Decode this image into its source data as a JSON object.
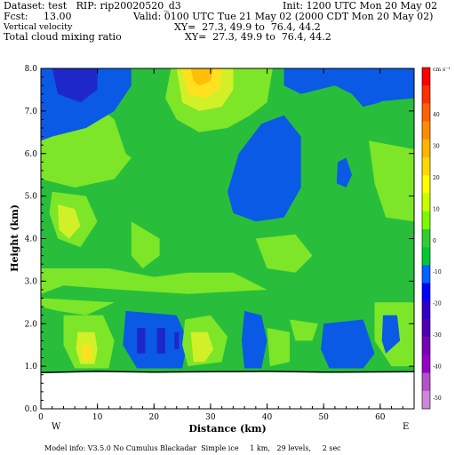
{
  "header": {
    "dataset": "Dataset: test   RIP: rip20020520_d3",
    "init": "Init: 1200 UTC Mon 20 May 02",
    "fcst": "Fcst:     13.00",
    "valid": "Valid: 0100 UTC Tue 21 May 02 (2000 CDT Mon 20 May 02)",
    "field1": "Vertical velocity",
    "xy1": "XY=  27.3, 49.9 to  76.4, 44.2",
    "field2": "Total cloud mixing ratio",
    "xy2": "XY=  27.3, 49.9 to  76.4, 44.2"
  },
  "footer": "Model info: V3.5.0 No Cumulus Blackadar  Simple ice     1 km,   29 levels,     2 sec",
  "colors": {
    "background": "#ffffff",
    "ground": "#ffffff"
  },
  "chart_data": {
    "type": "filled-contour",
    "xlabel": "Distance (km)",
    "ylabel": "Height (km)",
    "xlim": [
      0,
      66
    ],
    "ylim": [
      0,
      8
    ],
    "xticks": [
      "0",
      "10",
      "20",
      "30",
      "40",
      "50",
      "60"
    ],
    "yticks": [
      "0.0",
      "1.0",
      "2.0",
      "3.0",
      "4.0",
      "5.0",
      "6.0",
      "7.0",
      "8.0"
    ],
    "left_end_label": "W",
    "right_end_label": "E",
    "colorbar_unit": "cm s⁻¹",
    "colorbar_ticks": [
      "40",
      "30",
      "20",
      "10",
      "0",
      "-10",
      "-20",
      "-30",
      "-40",
      "-50"
    ],
    "colorbar_colors": [
      "#ff0000",
      "#ff3000",
      "#ff6000",
      "#ff8c00",
      "#ffb400",
      "#ffd700",
      "#ffff00",
      "#c8ff00",
      "#7dfa00",
      "#32cd32",
      "#00c832",
      "#0064ff",
      "#0000ff",
      "#3000c8",
      "#5000b4",
      "#7800b4",
      "#9600c8",
      "#b450c8",
      "#cc88d8"
    ],
    "ground_profile_km": [
      [
        0,
        0.85
      ],
      [
        10,
        0.88
      ],
      [
        20,
        0.86
      ],
      [
        30,
        0.87
      ],
      [
        40,
        0.88
      ],
      [
        50,
        0.86
      ],
      [
        66,
        0.87
      ]
    ],
    "level_colors": {
      "-20": "#1e28c8",
      "-10": "#0a5ae6",
      "0": "#28be3c",
      "5": "#7de628",
      "10": "#d2f028",
      "20": "#ffe11e",
      "30": "#ffbe0a"
    },
    "regions": [
      {
        "level": "5",
        "points": [
          [
            0,
            7.5
          ],
          [
            8,
            7.3
          ],
          [
            13,
            6.8
          ],
          [
            15,
            6.0
          ],
          [
            12,
            5.7
          ],
          [
            5,
            5.6
          ],
          [
            0,
            5.5
          ]
        ]
      },
      {
        "level": "-10",
        "points": [
          [
            0,
            8
          ],
          [
            16,
            8
          ],
          [
            16,
            7.6
          ],
          [
            13,
            7.0
          ],
          [
            8,
            6.6
          ],
          [
            2,
            6.4
          ],
          [
            0,
            6.3
          ]
        ]
      },
      {
        "level": "-20",
        "points": [
          [
            2,
            8
          ],
          [
            10,
            8
          ],
          [
            10,
            7.5
          ],
          [
            7,
            7.2
          ],
          [
            3,
            7.4
          ]
        ]
      },
      {
        "level": "5",
        "points": [
          [
            23,
            8
          ],
          [
            41,
            8
          ],
          [
            40,
            7.2
          ],
          [
            37,
            6.9
          ],
          [
            33,
            6.6
          ],
          [
            28,
            6.5
          ],
          [
            24,
            6.8
          ],
          [
            22,
            7.3
          ]
        ]
      },
      {
        "level": "10",
        "points": [
          [
            24,
            8
          ],
          [
            34,
            8
          ],
          [
            34,
            7.5
          ],
          [
            32,
            7.1
          ],
          [
            28,
            7.0
          ],
          [
            25,
            7.2
          ]
        ]
      },
      {
        "level": "20",
        "points": [
          [
            25,
            8
          ],
          [
            32,
            8
          ],
          [
            31.5,
            7.5
          ],
          [
            29,
            7.3
          ],
          [
            26,
            7.4
          ]
        ]
      },
      {
        "level": "30",
        "points": [
          [
            26.5,
            8
          ],
          [
            30.5,
            8
          ],
          [
            30,
            7.7
          ],
          [
            28,
            7.6
          ],
          [
            27,
            7.7
          ]
        ]
      },
      {
        "level": "-10",
        "points": [
          [
            43,
            8
          ],
          [
            66,
            8
          ],
          [
            66,
            7.3
          ],
          [
            58,
            7.2
          ],
          [
            52,
            7.6
          ],
          [
            46,
            7.4
          ],
          [
            43,
            7.6
          ]
        ]
      },
      {
        "level": "-10",
        "points": [
          [
            55,
            8
          ],
          [
            62,
            8
          ],
          [
            62,
            7.6
          ],
          [
            60,
            7.2
          ],
          [
            57,
            7.1
          ],
          [
            55,
            7.4
          ]
        ]
      },
      {
        "level": "-10",
        "points": [
          [
            33,
            5.1
          ],
          [
            35,
            6.0
          ],
          [
            39,
            6.7
          ],
          [
            43,
            6.9
          ],
          [
            46,
            6.4
          ],
          [
            46,
            5.2
          ],
          [
            43,
            4.5
          ],
          [
            38,
            4.4
          ],
          [
            34,
            4.6
          ]
        ]
      },
      {
        "level": "-10",
        "points": [
          [
            52.3,
            5.3
          ],
          [
            54,
            5.2
          ],
          [
            55,
            5.5
          ],
          [
            54,
            5.9
          ],
          [
            52.5,
            5.8
          ]
        ]
      },
      {
        "level": "5",
        "points": [
          [
            58,
            6.3
          ],
          [
            66,
            6.1
          ],
          [
            66,
            4.4
          ],
          [
            61,
            4.5
          ],
          [
            59,
            5.3
          ]
        ]
      },
      {
        "level": "5",
        "points": [
          [
            0,
            6.1
          ],
          [
            14,
            6.1
          ],
          [
            16,
            5.9
          ],
          [
            13,
            5.4
          ],
          [
            6,
            5.2
          ],
          [
            0,
            5.4
          ]
        ]
      },
      {
        "level": "5",
        "points": [
          [
            2,
            5.1
          ],
          [
            8,
            5.0
          ],
          [
            10,
            4.4
          ],
          [
            7,
            3.8
          ],
          [
            3,
            4.0
          ],
          [
            1.5,
            4.6
          ]
        ]
      },
      {
        "level": "10",
        "points": [
          [
            3,
            4.8
          ],
          [
            6,
            4.7
          ],
          [
            7,
            4.3
          ],
          [
            5,
            4.0
          ],
          [
            3.2,
            4.2
          ]
        ]
      },
      {
        "level": "5",
        "points": [
          [
            16,
            4.4
          ],
          [
            21,
            4.0
          ],
          [
            21,
            3.6
          ],
          [
            18,
            3.3
          ],
          [
            16,
            3.6
          ]
        ]
      },
      {
        "level": "5",
        "points": [
          [
            38,
            4.0
          ],
          [
            45,
            4.1
          ],
          [
            48,
            3.6
          ],
          [
            45,
            3.2
          ],
          [
            40,
            3.3
          ]
        ]
      },
      {
        "level": "5",
        "points": [
          [
            0,
            3.3
          ],
          [
            12,
            3.3
          ],
          [
            20,
            3.1
          ],
          [
            26,
            3.2
          ],
          [
            34,
            3.2
          ],
          [
            40,
            2.8
          ],
          [
            26,
            2.7
          ],
          [
            14,
            2.8
          ],
          [
            4,
            2.9
          ],
          [
            0,
            2.7
          ]
        ]
      },
      {
        "level": "5",
        "points": [
          [
            0,
            2.6
          ],
          [
            13,
            2.5
          ],
          [
            8,
            2.2
          ],
          [
            3,
            2.3
          ],
          [
            0,
            2.4
          ]
        ]
      },
      {
        "level": "5",
        "points": [
          [
            4,
            2.2
          ],
          [
            11,
            2.2
          ],
          [
            13,
            1.6
          ],
          [
            12,
            0.95
          ],
          [
            6,
            0.95
          ],
          [
            4,
            1.5
          ]
        ]
      },
      {
        "level": "10",
        "points": [
          [
            6.5,
            1.8
          ],
          [
            9.5,
            1.8
          ],
          [
            10,
            1.4
          ],
          [
            9.5,
            1.05
          ],
          [
            7,
            1.05
          ],
          [
            6.2,
            1.4
          ]
        ]
      },
      {
        "level": "20",
        "points": [
          [
            7.2,
            1.5
          ],
          [
            8.8,
            1.5
          ],
          [
            9,
            1.2
          ],
          [
            8.5,
            1.1
          ],
          [
            7.3,
            1.15
          ]
        ]
      },
      {
        "level": "-10",
        "points": [
          [
            15,
            2.3
          ],
          [
            24,
            2.2
          ],
          [
            26,
            1.6
          ],
          [
            25,
            0.95
          ],
          [
            17,
            0.95
          ],
          [
            14.5,
            1.5
          ]
        ]
      },
      {
        "level": "-20",
        "points": [
          [
            17,
            1.9
          ],
          [
            18.5,
            1.9
          ],
          [
            18.5,
            1.3
          ],
          [
            17,
            1.3
          ]
        ]
      },
      {
        "level": "-20",
        "points": [
          [
            20.5,
            1.9
          ],
          [
            22,
            1.9
          ],
          [
            22,
            1.3
          ],
          [
            20.5,
            1.3
          ]
        ]
      },
      {
        "level": "-20",
        "points": [
          [
            23.6,
            1.8
          ],
          [
            24.4,
            1.8
          ],
          [
            24.4,
            1.4
          ],
          [
            23.6,
            1.4
          ]
        ]
      },
      {
        "level": "5",
        "points": [
          [
            25.5,
            2.1
          ],
          [
            30,
            2.2
          ],
          [
            33,
            1.7
          ],
          [
            32,
            1.1
          ],
          [
            26,
            1.0
          ],
          [
            25,
            1.5
          ]
        ]
      },
      {
        "level": "10",
        "points": [
          [
            26.5,
            1.8
          ],
          [
            29.5,
            1.8
          ],
          [
            30.5,
            1.4
          ],
          [
            29,
            1.1
          ],
          [
            27,
            1.1
          ]
        ]
      },
      {
        "level": "-10",
        "points": [
          [
            36,
            2.3
          ],
          [
            39,
            2.2
          ],
          [
            40,
            1.6
          ],
          [
            39,
            0.95
          ],
          [
            36,
            0.95
          ],
          [
            35.5,
            1.6
          ]
        ]
      },
      {
        "level": "5",
        "points": [
          [
            40,
            1.9
          ],
          [
            44,
            1.8
          ],
          [
            44,
            1.1
          ],
          [
            40.5,
            1.0
          ]
        ]
      },
      {
        "level": "-10",
        "points": [
          [
            50,
            2.0
          ],
          [
            57,
            2.1
          ],
          [
            59,
            1.3
          ],
          [
            57,
            0.95
          ],
          [
            51,
            0.95
          ],
          [
            49.5,
            1.4
          ]
        ]
      },
      {
        "level": "5",
        "points": [
          [
            59,
            2.5
          ],
          [
            66,
            2.5
          ],
          [
            66,
            1.0
          ],
          [
            62,
            1.0
          ],
          [
            59,
            1.6
          ]
        ]
      },
      {
        "level": "-10",
        "points": [
          [
            60.5,
            2.2
          ],
          [
            63,
            2.2
          ],
          [
            63.5,
            1.6
          ],
          [
            61,
            1.3
          ],
          [
            60.3,
            1.6
          ]
        ]
      },
      {
        "level": "5",
        "points": [
          [
            44,
            2.1
          ],
          [
            49,
            2.0
          ],
          [
            48,
            1.6
          ],
          [
            45,
            1.6
          ]
        ]
      }
    ]
  }
}
